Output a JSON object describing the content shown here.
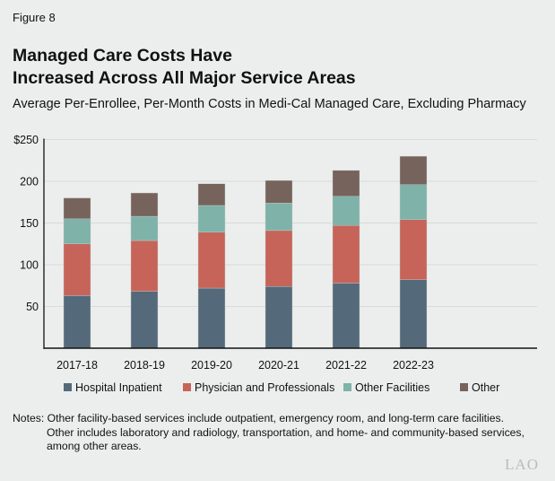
{
  "figure_label": "Figure 8",
  "title_lines": [
    "Managed Care Costs Have",
    "Increased Across All Major Service Areas"
  ],
  "chart_data": {
    "type": "bar",
    "stacked": true,
    "title": "Managed Care Costs Have Increased Across All Major Service Areas",
    "subtitle": "Average Per-Enrollee, Per-Month Costs in Medi-Cal Managed Care, Excluding Pharmacy",
    "categories": [
      "2017-18",
      "2018-19",
      "2019-20",
      "2020-21",
      "2021-22",
      "2022-23"
    ],
    "series": [
      {
        "name": "Hospital Inpatient",
        "color": "#546a7b",
        "values": [
          63,
          68,
          72,
          74,
          78,
          82
        ]
      },
      {
        "name": "Physician and Professionals",
        "color": "#c6645a",
        "values": [
          62,
          61,
          67,
          67,
          69,
          72
        ]
      },
      {
        "name": "Other Facilities",
        "color": "#7fb2a9",
        "values": [
          30,
          29,
          32,
          33,
          35,
          42
        ]
      },
      {
        "name": "Other",
        "color": "#76635c",
        "values": [
          25,
          28,
          26,
          27,
          31,
          34
        ]
      }
    ],
    "ylim": [
      0,
      250
    ],
    "yticks": [
      50,
      100,
      150,
      200,
      250
    ],
    "ytick_labels": [
      "50",
      "100",
      "150",
      "200",
      "$250"
    ],
    "grid": true,
    "legend_position": "bottom"
  },
  "notes": {
    "line1": "Notes: Other facility-based services include outpatient, emergency room, and long-term care facilities.",
    "line2": "Other includes laboratory and radiology, transportation, and home- and community-based services, among other areas."
  },
  "logo": "LAO"
}
